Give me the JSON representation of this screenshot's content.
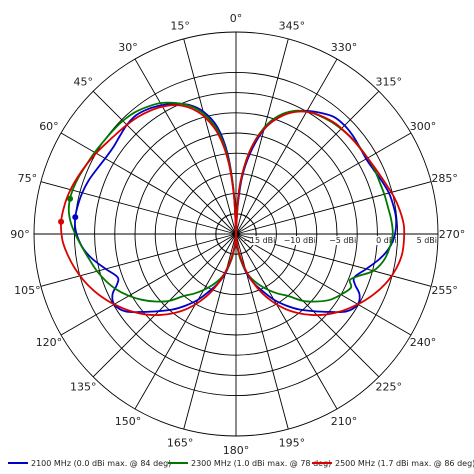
{
  "chart_data": {
    "type": "polar",
    "angle_labels": [
      {
        "deg": 0,
        "text": "0°"
      },
      {
        "deg": 15,
        "text": "15°"
      },
      {
        "deg": 30,
        "text": "30°"
      },
      {
        "deg": 45,
        "text": "45°"
      },
      {
        "deg": 60,
        "text": "60°"
      },
      {
        "deg": 75,
        "text": "75°"
      },
      {
        "deg": 90,
        "text": "90°"
      },
      {
        "deg": 105,
        "text": "105°"
      },
      {
        "deg": 120,
        "text": "120°"
      },
      {
        "deg": 135,
        "text": "135°"
      },
      {
        "deg": 150,
        "text": "150°"
      },
      {
        "deg": 165,
        "text": "165°"
      },
      {
        "deg": 180,
        "text": "180°"
      },
      {
        "deg": 195,
        "text": "195°"
      },
      {
        "deg": 210,
        "text": "210°"
      },
      {
        "deg": 225,
        "text": "225°"
      },
      {
        "deg": 240,
        "text": "240°"
      },
      {
        "deg": 255,
        "text": "255°"
      },
      {
        "deg": 270,
        "text": "270°"
      },
      {
        "deg": 285,
        "text": "285°"
      },
      {
        "deg": 300,
        "text": "300°"
      },
      {
        "deg": 315,
        "text": "315°"
      },
      {
        "deg": 330,
        "text": "330°"
      },
      {
        "deg": 345,
        "text": "345°"
      }
    ],
    "rings": [
      {
        "dbi": -15,
        "label": "−15 dBi"
      },
      {
        "dbi": -10,
        "label": "−10 dBi"
      },
      {
        "dbi": -5,
        "label": "−5 dBi"
      },
      {
        "dbi": 0,
        "label": "0 dBi"
      },
      {
        "dbi": 5,
        "label": "5 dBi"
      }
    ],
    "r_range": [
      -20,
      5
    ],
    "series": [
      {
        "name": "2100 MHz (0.0 dBi max. @ 84 deg)",
        "color": "#0000cc",
        "max_marker": {
          "deg": 84,
          "dbi": 0.0
        },
        "points": [
          [
            0,
            -20
          ],
          [
            3,
            -15
          ],
          [
            6,
            -10
          ],
          [
            10,
            -6.5
          ],
          [
            15,
            -4.3
          ],
          [
            20,
            -3
          ],
          [
            25,
            -2.2
          ],
          [
            30,
            -1.6
          ],
          [
            35,
            -1.1
          ],
          [
            40,
            -0.8
          ],
          [
            45,
            -0.9
          ],
          [
            50,
            -1.2
          ],
          [
            55,
            -1.4
          ],
          [
            60,
            -1.3
          ],
          [
            65,
            -1.0
          ],
          [
            70,
            -0.6
          ],
          [
            75,
            -0.3
          ],
          [
            80,
            -0.1
          ],
          [
            84,
            0.0
          ],
          [
            88,
            -0.1
          ],
          [
            92,
            -0.5
          ],
          [
            96,
            -1.1
          ],
          [
            100,
            -2.0
          ],
          [
            105,
            -3.3
          ],
          [
            110,
            -4.4
          ],
          [
            113,
            -4.0
          ],
          [
            116,
            -3.0
          ],
          [
            120,
            -2.6
          ],
          [
            125,
            -3.3
          ],
          [
            130,
            -5.0
          ],
          [
            135,
            -6.5
          ],
          [
            140,
            -7.8
          ],
          [
            145,
            -9.2
          ],
          [
            150,
            -10.6
          ],
          [
            155,
            -12.2
          ],
          [
            160,
            -13.5
          ],
          [
            165,
            -15
          ],
          [
            170,
            -17
          ],
          [
            175,
            -19
          ],
          [
            180,
            -20
          ],
          [
            185,
            -19
          ],
          [
            190,
            -17
          ],
          [
            195,
            -15
          ],
          [
            200,
            -13.5
          ],
          [
            205,
            -12.2
          ],
          [
            210,
            -10.6
          ],
          [
            215,
            -9.2
          ],
          [
            220,
            -7.8
          ],
          [
            225,
            -6.5
          ],
          [
            230,
            -5.0
          ],
          [
            235,
            -3.3
          ],
          [
            240,
            -2.6
          ],
          [
            244,
            -3.0
          ],
          [
            247,
            -4.0
          ],
          [
            250,
            -4.4
          ],
          [
            255,
            -3.3
          ],
          [
            260,
            -2.0
          ],
          [
            264,
            -1.1
          ],
          [
            268,
            -0.5
          ],
          [
            272,
            -0.2
          ],
          [
            276,
            -0.1
          ],
          [
            280,
            -0.2
          ],
          [
            285,
            -0.4
          ],
          [
            290,
            -0.8
          ],
          [
            295,
            -1.2
          ],
          [
            300,
            -1.4
          ],
          [
            305,
            -1.3
          ],
          [
            310,
            -1.1
          ],
          [
            315,
            -1.0
          ],
          [
            320,
            -1.1
          ],
          [
            325,
            -1.7
          ],
          [
            330,
            -2.4
          ],
          [
            335,
            -3.3
          ],
          [
            340,
            -4.7
          ],
          [
            345,
            -6.6
          ],
          [
            350,
            -9.8
          ],
          [
            354,
            -13
          ],
          [
            357,
            -17
          ],
          [
            360,
            -20
          ]
        ]
      },
      {
        "name": "2300 MHz (1.0 dBi max. @ 78 deg)",
        "color": "#007700",
        "max_marker": {
          "deg": 78,
          "dbi": 1.0
        },
        "points": [
          [
            0,
            -20
          ],
          [
            3,
            -15
          ],
          [
            6,
            -10.5
          ],
          [
            10,
            -7
          ],
          [
            15,
            -4.6
          ],
          [
            20,
            -3.1
          ],
          [
            25,
            -2.1
          ],
          [
            30,
            -1.3
          ],
          [
            35,
            -0.8
          ],
          [
            40,
            -0.4
          ],
          [
            45,
            -0.2
          ],
          [
            50,
            -0.1
          ],
          [
            55,
            0.0
          ],
          [
            60,
            0.2
          ],
          [
            65,
            0.4
          ],
          [
            70,
            0.7
          ],
          [
            74,
            0.9
          ],
          [
            78,
            1.0
          ],
          [
            82,
            0.9
          ],
          [
            86,
            0.5
          ],
          [
            90,
            -0.1
          ],
          [
            95,
            -0.9
          ],
          [
            100,
            -1.6
          ],
          [
            105,
            -2.2
          ],
          [
            110,
            -2.9
          ],
          [
            115,
            -3.7
          ],
          [
            120,
            -4.7
          ],
          [
            125,
            -5.8
          ],
          [
            130,
            -7.0
          ],
          [
            135,
            -8.3
          ],
          [
            140,
            -10
          ],
          [
            145,
            -11
          ],
          [
            150,
            -12
          ],
          [
            155,
            -13
          ],
          [
            160,
            -14
          ],
          [
            165,
            -15.2
          ],
          [
            170,
            -16.8
          ],
          [
            175,
            -18.6
          ],
          [
            180,
            -20
          ],
          [
            185,
            -18.6
          ],
          [
            190,
            -16.8
          ],
          [
            195,
            -15.2
          ],
          [
            200,
            -14
          ],
          [
            205,
            -13
          ],
          [
            210,
            -12
          ],
          [
            215,
            -11
          ],
          [
            220,
            -10
          ],
          [
            225,
            -8.3
          ],
          [
            230,
            -7.0
          ],
          [
            235,
            -5.8
          ],
          [
            240,
            -5.0
          ],
          [
            245,
            -4.3
          ],
          [
            248,
            -4.8
          ],
          [
            251,
            -4.0
          ],
          [
            255,
            -2.4
          ],
          [
            260,
            -1.4
          ],
          [
            265,
            -0.9
          ],
          [
            270,
            -0.6
          ],
          [
            275,
            -0.7
          ],
          [
            280,
            -0.9
          ],
          [
            285,
            -1.0
          ],
          [
            290,
            -1.1
          ],
          [
            295,
            -1.1
          ],
          [
            300,
            -1.2
          ],
          [
            305,
            -1.3
          ],
          [
            310,
            -1.4
          ],
          [
            315,
            -1.6
          ],
          [
            320,
            -1.8
          ],
          [
            325,
            -2.1
          ],
          [
            330,
            -2.5
          ],
          [
            335,
            -3.2
          ],
          [
            340,
            -4.4
          ],
          [
            345,
            -6.3
          ],
          [
            350,
            -9.2
          ],
          [
            354,
            -12.5
          ],
          [
            357,
            -16
          ],
          [
            360,
            -20
          ]
        ]
      },
      {
        "name": "2500 MHz (1.7 dBi max. @ 86 deg)",
        "color": "#dd0000",
        "max_marker": {
          "deg": 86,
          "dbi": 1.7
        },
        "points": [
          [
            0,
            -20
          ],
          [
            3,
            -15.5
          ],
          [
            6,
            -11
          ],
          [
            10,
            -7.5
          ],
          [
            15,
            -5.0
          ],
          [
            20,
            -3.4
          ],
          [
            25,
            -2.4
          ],
          [
            30,
            -1.8
          ],
          [
            35,
            -1.4
          ],
          [
            40,
            -1.1
          ],
          [
            45,
            -0.9
          ],
          [
            50,
            -0.7
          ],
          [
            55,
            -0.4
          ],
          [
            60,
            0.0
          ],
          [
            65,
            0.4
          ],
          [
            70,
            0.8
          ],
          [
            75,
            1.2
          ],
          [
            80,
            1.5
          ],
          [
            86,
            1.7
          ],
          [
            92,
            1.5
          ],
          [
            97,
            1.0
          ],
          [
            102,
            0.4
          ],
          [
            107,
            -0.3
          ],
          [
            112,
            -1.1
          ],
          [
            117,
            -2.0
          ],
          [
            122,
            -3.0
          ],
          [
            127,
            -4.0
          ],
          [
            132,
            -5.1
          ],
          [
            137,
            -6.3
          ],
          [
            142,
            -7.6
          ],
          [
            147,
            -9.0
          ],
          [
            152,
            -10.6
          ],
          [
            157,
            -12.3
          ],
          [
            162,
            -14.2
          ],
          [
            167,
            -16.2
          ],
          [
            172,
            -18
          ],
          [
            176,
            -19.4
          ],
          [
            180,
            -20
          ],
          [
            184,
            -19.4
          ],
          [
            188,
            -18
          ],
          [
            193,
            -16.2
          ],
          [
            198,
            -14.2
          ],
          [
            203,
            -12.3
          ],
          [
            208,
            -10.6
          ],
          [
            213,
            -9.0
          ],
          [
            218,
            -7.6
          ],
          [
            223,
            -6.3
          ],
          [
            228,
            -5.1
          ],
          [
            233,
            -4.0
          ],
          [
            238,
            -3.0
          ],
          [
            243,
            -2.0
          ],
          [
            248,
            -1.1
          ],
          [
            253,
            -0.3
          ],
          [
            258,
            0.3
          ],
          [
            263,
            0.7
          ],
          [
            268,
            0.8
          ],
          [
            273,
            0.8
          ],
          [
            278,
            0.5
          ],
          [
            283,
            0.1
          ],
          [
            288,
            -0.4
          ],
          [
            293,
            -0.8
          ],
          [
            298,
            -1.1
          ],
          [
            303,
            -1.3
          ],
          [
            308,
            -1.4
          ],
          [
            313,
            -1.5
          ],
          [
            318,
            -1.6
          ],
          [
            323,
            -1.9
          ],
          [
            328,
            -2.3
          ],
          [
            333,
            -3.0
          ],
          [
            338,
            -4.1
          ],
          [
            343,
            -5.7
          ],
          [
            348,
            -8.0
          ],
          [
            352,
            -10.8
          ],
          [
            356,
            -14.5
          ],
          [
            360,
            -20
          ]
        ]
      }
    ]
  }
}
